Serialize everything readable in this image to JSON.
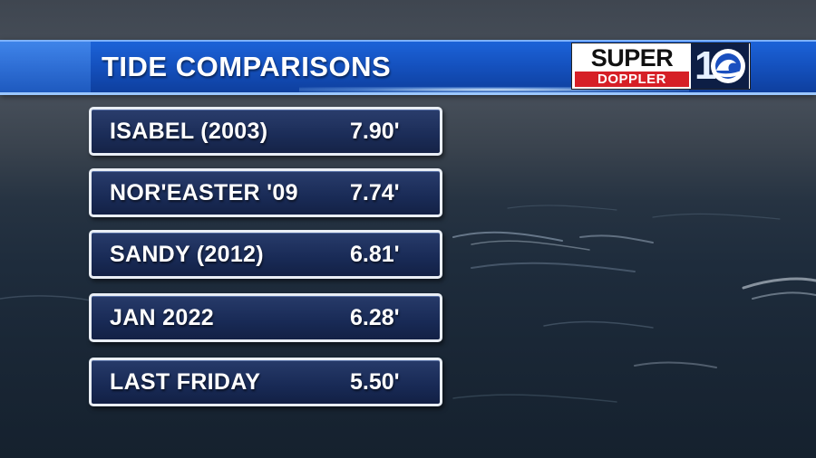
{
  "header": {
    "title": "TIDE COMPARISONS"
  },
  "logo": {
    "super": "SUPER",
    "doppler": "DOPPLER",
    "number": "1",
    "brand_blue": "#1552c0",
    "brand_red": "#d61f26"
  },
  "tides": [
    {
      "label": "ISABEL (2003)",
      "value": "7.90'"
    },
    {
      "label": "NOR'EASTER '09",
      "value": "7.74'"
    },
    {
      "label": "SANDY (2012)",
      "value": "6.81'"
    },
    {
      "label": "JAN 2022",
      "value": "6.28'"
    },
    {
      "label": "LAST FRIDAY",
      "value": "5.50'"
    }
  ]
}
